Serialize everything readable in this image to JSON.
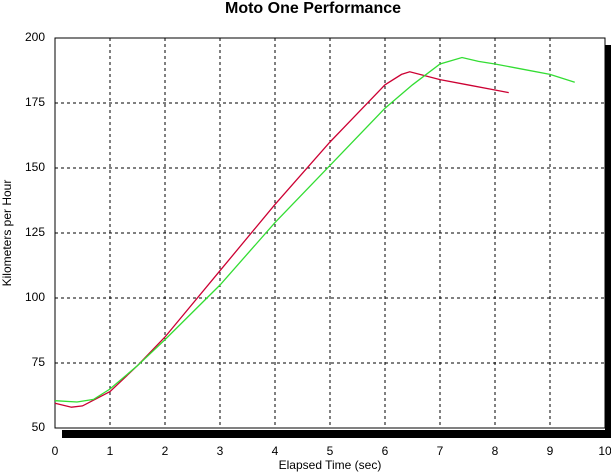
{
  "chart_data": {
    "type": "line",
    "title": "Moto One Performance",
    "x_label": "Elapsed Time (sec)",
    "y_label": "Kilometers per Hour",
    "xlim": [
      0,
      10
    ],
    "xticks": [
      0,
      1,
      2,
      3,
      4,
      5,
      6,
      7,
      8,
      9,
      10
    ],
    "ylim": [
      50,
      200
    ],
    "yticks": [
      50,
      75,
      100,
      125,
      150,
      175,
      200
    ],
    "grid": true,
    "series": [
      {
        "color": "#cc0033",
        "x": [
          0,
          0.3,
          0.5,
          1,
          1.5,
          2,
          3,
          4,
          5,
          6,
          6.3,
          6.45,
          7,
          7.5,
          8,
          8.25
        ],
        "values": [
          59.5,
          58,
          58.5,
          64,
          74,
          85,
          110.5,
          136,
          160,
          182,
          186,
          187,
          184,
          182,
          180,
          179
        ]
      },
      {
        "color": "#33dd33",
        "x": [
          0,
          0.4,
          0.7,
          1,
          1.5,
          2,
          3,
          4,
          5,
          6,
          6.5,
          7,
          7.4,
          7.7,
          8,
          8.5,
          9,
          9.45
        ],
        "values": [
          60.5,
          60,
          61,
          65,
          74,
          84,
          105,
          129,
          151,
          173,
          182,
          190,
          192.5,
          191,
          190,
          188,
          186,
          183
        ]
      }
    ]
  }
}
